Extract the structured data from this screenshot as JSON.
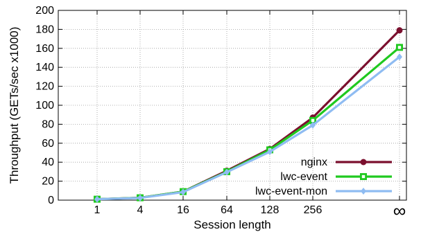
{
  "chart_data": {
    "type": "line",
    "title": "",
    "xlabel": "Session length",
    "ylabel": "Throughput (GETs/sec x1000)",
    "categories": [
      "1",
      "4",
      "16",
      "64",
      "128",
      "256",
      "∞"
    ],
    "ylim": [
      0,
      200
    ],
    "yticks": [
      0,
      20,
      40,
      60,
      80,
      100,
      120,
      140,
      160,
      180,
      200
    ],
    "grid": true,
    "legend_position": "bottom-right",
    "series": [
      {
        "name": "nginx",
        "color": "#7b0f2e",
        "marker": "circle",
        "values": [
          1,
          2.5,
          9,
          31,
          54,
          87,
          179
        ]
      },
      {
        "name": "lwc-event",
        "color": "#1fc91f",
        "marker": "square",
        "values": [
          1,
          2.5,
          9,
          30,
          53,
          84,
          161
        ]
      },
      {
        "name": "lwc-event-mon",
        "color": "#8fbcf2",
        "marker": "diamond",
        "values": [
          1,
          2.3,
          8.5,
          29.5,
          51,
          79,
          151
        ]
      }
    ]
  }
}
